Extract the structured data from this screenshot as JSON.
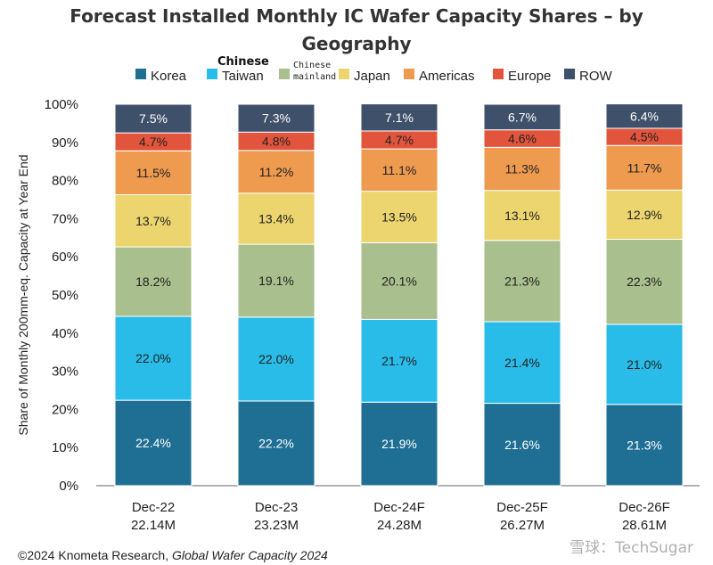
{
  "chart_data": {
    "type": "bar",
    "stacked": true,
    "title_lines": [
      "Forecast Installed Monthly IC Wafer Capacity Shares – by",
      "Geography"
    ],
    "ylabel": "Share of Monthly 200mm-eq. Capacity at Year End",
    "ylim": [
      0,
      100
    ],
    "yticks": [
      "0%",
      "10%",
      "20%",
      "30%",
      "40%",
      "50%",
      "60%",
      "70%",
      "80%",
      "90%",
      "100%"
    ],
    "legend_position": "top",
    "legend_overlay_label": "Chinese",
    "categories": [
      "Dec-22",
      "Dec-23",
      "Dec-24F",
      "Dec-25F",
      "Dec-26F"
    ],
    "category_totals": [
      "22.14M",
      "23.23M",
      "24.28M",
      "26.27M",
      "28.61M"
    ],
    "series": [
      {
        "name": "Korea",
        "color": "#1f6f94",
        "label_color": "#ffffff",
        "values": [
          22.4,
          22.2,
          21.9,
          21.6,
          21.3
        ],
        "labels": [
          "22.4%",
          "22.2%",
          "21.9%",
          "21.6%",
          "21.3%"
        ]
      },
      {
        "name": "Taiwan",
        "color": "#29bce8",
        "label_color": "#222222",
        "values": [
          22.0,
          22.0,
          21.7,
          21.4,
          21.0
        ],
        "labels": [
          "22.0%",
          "22.0%",
          "21.7%",
          "21.4%",
          "21.0%"
        ]
      },
      {
        "name": "Chinese mainland",
        "legend_lines": [
          "Chinese",
          "mainland"
        ],
        "color": "#a9bf8d",
        "label_color": "#222222",
        "values": [
          18.2,
          19.1,
          20.1,
          21.3,
          22.3
        ],
        "labels": [
          "18.2%",
          "19.1%",
          "20.1%",
          "21.3%",
          "22.3%"
        ]
      },
      {
        "name": "Japan",
        "color": "#ecd46e",
        "label_color": "#222222",
        "values": [
          13.7,
          13.4,
          13.5,
          13.1,
          12.9
        ],
        "labels": [
          "13.7%",
          "13.4%",
          "13.5%",
          "13.1%",
          "12.9%"
        ]
      },
      {
        "name": "Americas",
        "color": "#ee9a4f",
        "label_color": "#222222",
        "values": [
          11.5,
          11.2,
          11.1,
          11.3,
          11.7
        ],
        "labels": [
          "11.5%",
          "11.2%",
          "11.1%",
          "11.3%",
          "11.7%"
        ]
      },
      {
        "name": "Europe",
        "color": "#e2553c",
        "label_color": "#222222",
        "values": [
          4.7,
          4.8,
          4.7,
          4.6,
          4.5
        ],
        "labels": [
          "4.7%",
          "4.8%",
          "4.7%",
          "4.6%",
          "4.5%"
        ]
      },
      {
        "name": "ROW",
        "color": "#3f506b",
        "label_color": "#ffffff",
        "values": [
          7.5,
          7.3,
          7.1,
          6.7,
          6.4
        ],
        "labels": [
          "7.5%",
          "7.3%",
          "7.1%",
          "6.7%",
          "6.4%"
        ]
      }
    ]
  },
  "footer": {
    "source_prefix": "©2024 Knometa Research, ",
    "source_italic": "Global Wafer Capacity 2024"
  },
  "watermark": "雪球：TechSugar"
}
